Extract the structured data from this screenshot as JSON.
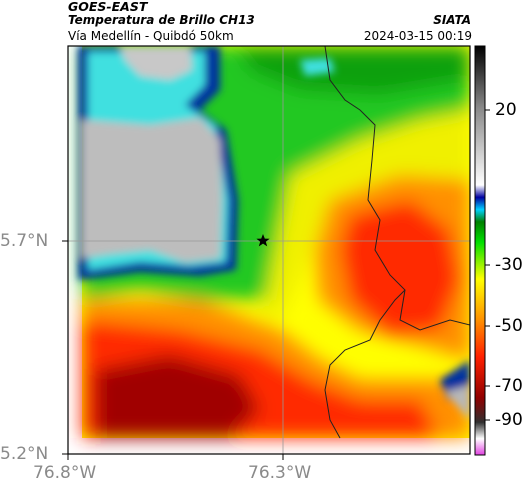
{
  "header": {
    "satellite": "GOES-EAST",
    "product": "Temperatura de Brillo CH13",
    "region": "Vía Medellín - Quibdó 50km",
    "organization": "SIATA",
    "datetime": "2024-03-15 00:19"
  },
  "axes": {
    "lon_ticks": [
      "76.8°W",
      "76.3°W"
    ],
    "lat_ticks": [
      "5.7°N",
      "5.2°N"
    ]
  },
  "colorbar": {
    "ticks": [
      "20",
      "-30",
      "-50",
      "-70",
      "-90"
    ],
    "stops": [
      "#e040e0",
      "#ffffff",
      "#202020",
      "#a00000",
      "#ff2000",
      "#ff8000",
      "#ffff00",
      "#00e000",
      "#008000",
      "#00c0ff",
      "#0000a0",
      "#ffffff",
      "#808080",
      "#000000"
    ]
  },
  "map": {
    "marker": "star-marker",
    "colors": {
      "cloud_gray": "#b8b8b8",
      "deep_blue": "#0030a0",
      "cyan": "#40e0e0",
      "green": "#20c820",
      "yellow": "#f0f000",
      "orange": "#ff9000",
      "red": "#ff2a00",
      "dark_red": "#8a0000"
    }
  }
}
